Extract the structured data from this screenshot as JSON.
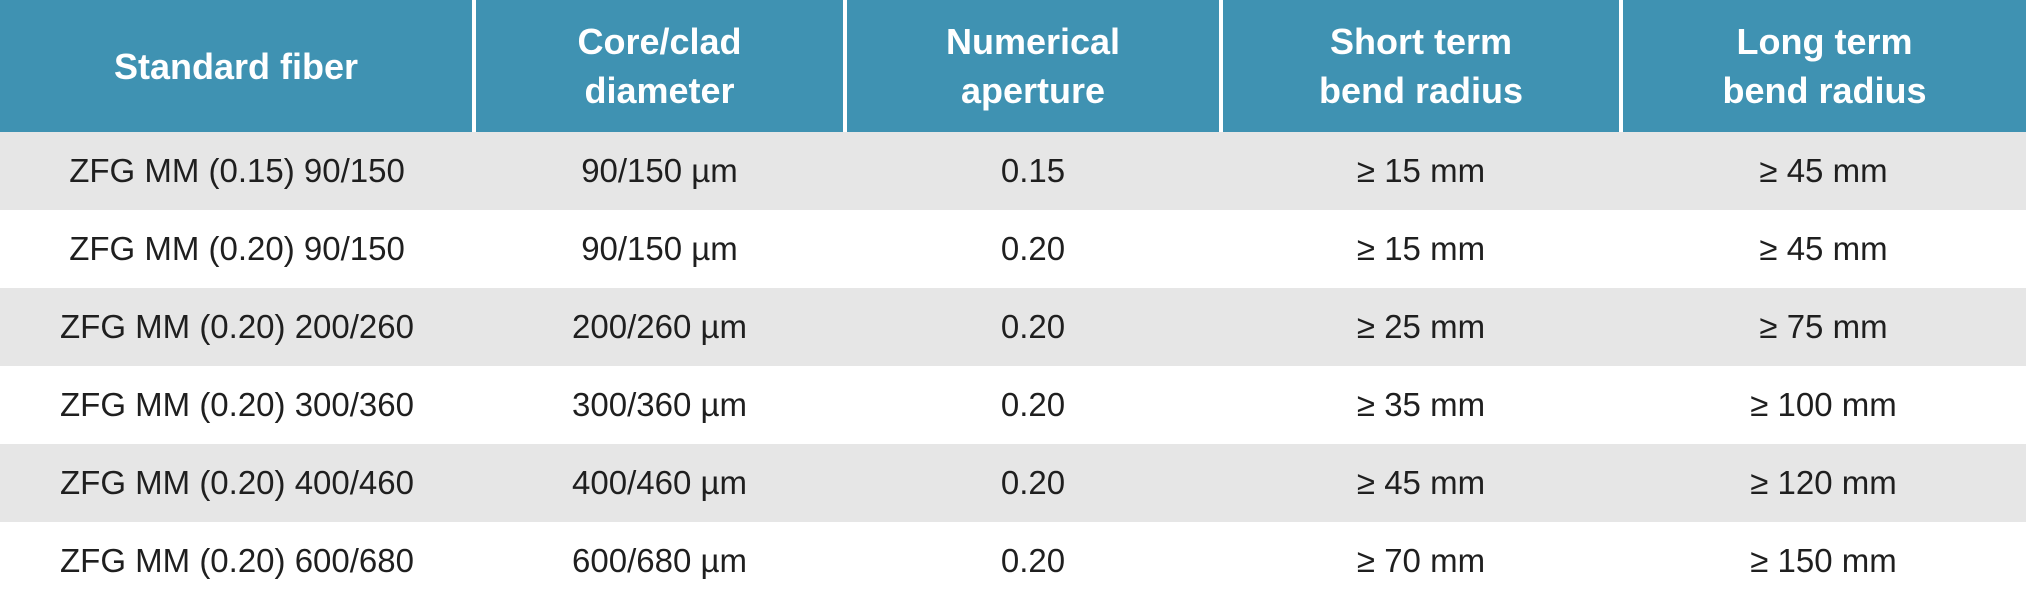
{
  "table": {
    "headers": [
      [
        "Standard fiber"
      ],
      [
        "Core/clad",
        "diameter"
      ],
      [
        "Numerical",
        "aperture"
      ],
      [
        "Short term",
        "bend radius"
      ],
      [
        "Long term",
        "bend radius"
      ]
    ],
    "rows": [
      [
        "ZFG MM (0.15) 90/150",
        "90/150 µm",
        "0.15",
        "≥ 15 mm",
        "≥ 45 mm"
      ],
      [
        "ZFG MM (0.20) 90/150",
        "90/150 µm",
        "0.20",
        "≥ 15 mm",
        "≥ 45 mm"
      ],
      [
        "ZFG MM (0.20) 200/260",
        "200/260 µm",
        "0.20",
        "≥ 25 mm",
        "≥ 75 mm"
      ],
      [
        "ZFG MM (0.20) 300/360",
        "300/360 µm",
        "0.20",
        "≥ 35 mm",
        "≥ 100 mm"
      ],
      [
        "ZFG MM (0.20) 400/460",
        "400/460 µm",
        "0.20",
        "≥ 45 mm",
        "≥ 120 mm"
      ],
      [
        "ZFG MM (0.20) 600/680",
        "600/680 µm",
        "0.20",
        "≥ 70 mm",
        "≥ 150 mm"
      ]
    ]
  },
  "colors": {
    "header_background": "#3f92b2",
    "header_text": "#ffffff",
    "shaded_row": "#e6e6e6",
    "plain_row": "#ffffff",
    "body_text": "#1f1f1f"
  }
}
